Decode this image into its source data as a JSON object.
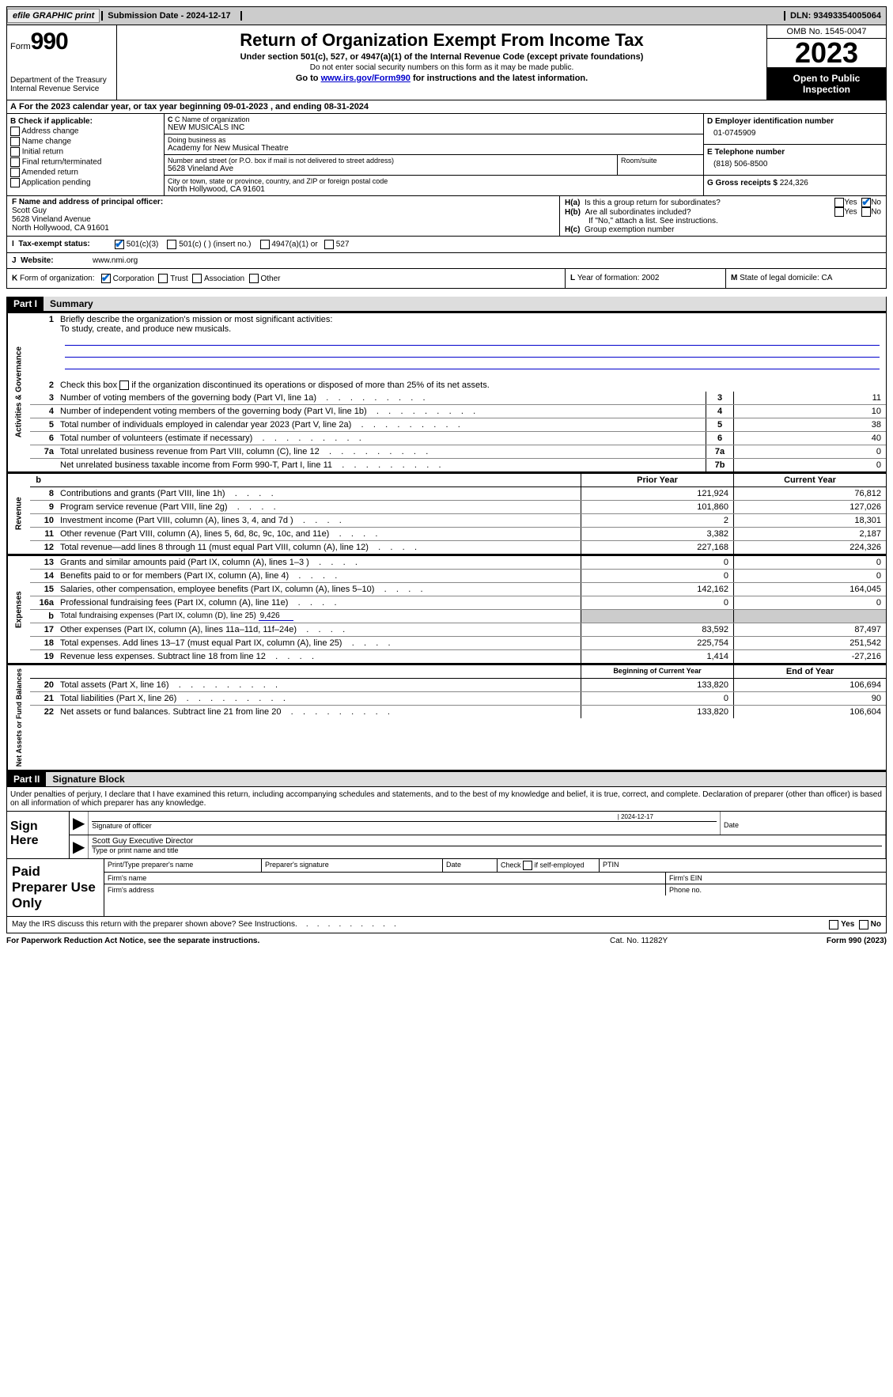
{
  "top": {
    "efile": "efile GRAPHIC print",
    "print_btn": "print",
    "submission": "Submission Date - 2024-12-17",
    "dln": "DLN: 93493354005064"
  },
  "header": {
    "form_label": "Form",
    "form_number": "990",
    "dept": "Department of the Treasury\nInternal Revenue Service",
    "title": "Return of Organization Exempt From Income Tax",
    "subtitle": "Under section 501(c), 527, or 4947(a)(1) of the Internal Revenue Code (except private foundations)",
    "ssn_note": "Do not enter social security numbers on this form as it may be made public.",
    "goto_pre": "Go to ",
    "goto_link": "www.irs.gov/Form990",
    "goto_post": " for instructions and the latest information.",
    "omb": "OMB No. 1545-0047",
    "year": "2023",
    "open": "Open to Public Inspection"
  },
  "line_a": "For the 2023 calendar year, or tax year beginning 09-01-2023    , and ending 08-31-2024",
  "box_b": {
    "label": "B Check if applicable:",
    "items": [
      "Address change",
      "Name change",
      "Initial return",
      "Final return/terminated",
      "Amended return",
      "Application pending"
    ]
  },
  "box_c": {
    "name_label": "C Name of organization",
    "name": "NEW MUSICALS INC",
    "dba_label": "Doing business as",
    "dba": "Academy for New Musical Theatre",
    "addr_label": "Number and street (or P.O. box if mail is not delivered to street address)",
    "room_label": "Room/suite",
    "addr": "5628 Vineland Ave",
    "city_label": "City or town, state or province, country, and ZIP or foreign postal code",
    "city": "North Hollywood, CA   91601"
  },
  "box_d": {
    "label": "D Employer identification number",
    "value": "01-0745909",
    "phone_label": "E Telephone number",
    "phone": "(818) 506-8500",
    "gross_label": "G Gross receipts $",
    "gross": "224,326"
  },
  "box_f": {
    "label": "F   Name and address of principal officer:",
    "name": "Scott Guy",
    "addr1": "5628 Vineland Avenue",
    "addr2": "North Hollywood, CA   91601"
  },
  "box_h": {
    "a": "Is this a group return for subordinates?",
    "b": "Are all subordinates included?",
    "note": "If \"No,\" attach a list. See instructions.",
    "c": "Group exemption number",
    "ha_label": "H(a)",
    "hb_label": "H(b)",
    "hc_label": "H(c)",
    "yes": "Yes",
    "no": "No"
  },
  "box_i": {
    "label": "I",
    "title": "Tax-exempt status:",
    "opt1": "501(c)(3)",
    "opt2": "501(c) (   ) (insert no.)",
    "opt3": "4947(a)(1) or",
    "opt4": "527"
  },
  "box_j": {
    "label": "J",
    "title": "Website:",
    "value": "www.nmi.org"
  },
  "box_k": {
    "label": "K",
    "title": "Form of organization:",
    "opts": [
      "Corporation",
      "Trust",
      "Association",
      "Other"
    ]
  },
  "box_l": {
    "label": "L",
    "text": "Year of formation: 2002"
  },
  "box_m": {
    "label": "M",
    "text": "State of legal domicile: CA"
  },
  "part1": {
    "header": "Part I",
    "title": "Summary"
  },
  "sections": {
    "gov": {
      "label": "Activities & Governance",
      "line1": "Briefly describe the organization's mission or most significant activities:",
      "mission": "To study, create, and produce new musicals.",
      "line2": "Check this box          if the organization discontinued its operations or disposed of more than 25% of its net assets.",
      "rows": [
        {
          "n": "3",
          "d": "Number of voting members of the governing body (Part VI, line 1a)",
          "box": "3",
          "v": "11"
        },
        {
          "n": "4",
          "d": "Number of independent voting members of the governing body (Part VI, line 1b)",
          "box": "4",
          "v": "10"
        },
        {
          "n": "5",
          "d": "Total number of individuals employed in calendar year 2023 (Part V, line 2a)",
          "box": "5",
          "v": "38"
        },
        {
          "n": "6",
          "d": "Total number of volunteers (estimate if necessary)",
          "box": "6",
          "v": "40"
        },
        {
          "n": "7a",
          "d": "Total unrelated business revenue from Part VIII, column (C), line 12",
          "box": "7a",
          "v": "0"
        },
        {
          "n": "",
          "d": "Net unrelated business taxable income from Form 990-T, Part I, line 11",
          "box": "7b",
          "v": "0"
        }
      ]
    },
    "rev": {
      "label": "Revenue",
      "hdr_prior": "Prior Year",
      "hdr_curr": "Current Year",
      "rows": [
        {
          "n": "8",
          "d": "Contributions and grants (Part VIII, line 1h)",
          "p": "121,924",
          "c": "76,812"
        },
        {
          "n": "9",
          "d": "Program service revenue (Part VIII, line 2g)",
          "p": "101,860",
          "c": "127,026"
        },
        {
          "n": "10",
          "d": "Investment income (Part VIII, column (A), lines 3, 4, and 7d )",
          "p": "2",
          "c": "18,301"
        },
        {
          "n": "11",
          "d": "Other revenue (Part VIII, column (A), lines 5, 6d, 8c, 9c, 10c, and 11e)",
          "p": "3,382",
          "c": "2,187"
        },
        {
          "n": "12",
          "d": "Total revenue—add lines 8 through 11 (must equal Part VIII, column (A), line 12)",
          "p": "227,168",
          "c": "224,326"
        }
      ]
    },
    "exp": {
      "label": "Expenses",
      "rows": [
        {
          "n": "13",
          "d": "Grants and similar amounts paid (Part IX, column (A), lines 1–3 )",
          "p": "0",
          "c": "0"
        },
        {
          "n": "14",
          "d": "Benefits paid to or for members (Part IX, column (A), line 4)",
          "p": "0",
          "c": "0"
        },
        {
          "n": "15",
          "d": "Salaries, other compensation, employee benefits (Part IX, column (A), lines 5–10)",
          "p": "142,162",
          "c": "164,045"
        },
        {
          "n": "16a",
          "d": "Professional fundraising fees (Part IX, column (A), line 11e)",
          "p": "0",
          "c": "0"
        },
        {
          "n": "b",
          "d": "Total fundraising expenses (Part IX, column (D), line 25)",
          "val": "9,426",
          "shaded": true
        },
        {
          "n": "17",
          "d": "Other expenses (Part IX, column (A), lines 11a–11d, 11f–24e)",
          "p": "83,592",
          "c": "87,497"
        },
        {
          "n": "18",
          "d": "Total expenses. Add lines 13–17 (must equal Part IX, column (A), line 25)",
          "p": "225,754",
          "c": "251,542"
        },
        {
          "n": "19",
          "d": "Revenue less expenses. Subtract line 18 from line 12",
          "p": "1,414",
          "c": "-27,216"
        }
      ]
    },
    "net": {
      "label": "Net Assets or Fund Balances",
      "hdr_begin": "Beginning of Current Year",
      "hdr_end": "End of Year",
      "rows": [
        {
          "n": "20",
          "d": "Total assets (Part X, line 16)",
          "p": "133,820",
          "c": "106,694"
        },
        {
          "n": "21",
          "d": "Total liabilities (Part X, line 26)",
          "p": "0",
          "c": "90"
        },
        {
          "n": "22",
          "d": "Net assets or fund balances. Subtract line 21 from line 20",
          "p": "133,820",
          "c": "106,604"
        }
      ]
    }
  },
  "part2": {
    "header": "Part II",
    "title": "Signature Block"
  },
  "sig": {
    "perjury": "Under penalties of perjury, I declare that I have examined this return, including accompanying schedules and statements, and to the best of my knowledge and belief, it is true, correct, and complete. Declaration of preparer (other than officer) is based on all information of which preparer has any knowledge.",
    "sign_here": "Sign Here",
    "sig_officer": "Signature of officer",
    "date": "Date",
    "sig_date": "2024-12-17",
    "name_title": "Scott Guy  Executive Director",
    "type_label": "Type or print name and title",
    "paid": "Paid Preparer Use Only",
    "prep_name": "Print/Type preparer's name",
    "prep_sig": "Preparer's signature",
    "check_self": "Check          if self-employed",
    "ptin": "PTIN",
    "firm_name": "Firm's name",
    "firm_ein": "Firm's EIN",
    "firm_addr": "Firm's address",
    "phone": "Phone no."
  },
  "discuss": "May the IRS discuss this return with the preparer shown above? See Instructions.",
  "footer": {
    "left": "For Paperwork Reduction Act Notice, see the separate instructions.",
    "cat": "Cat. No. 11282Y",
    "right": "Form 990 (2023)"
  }
}
